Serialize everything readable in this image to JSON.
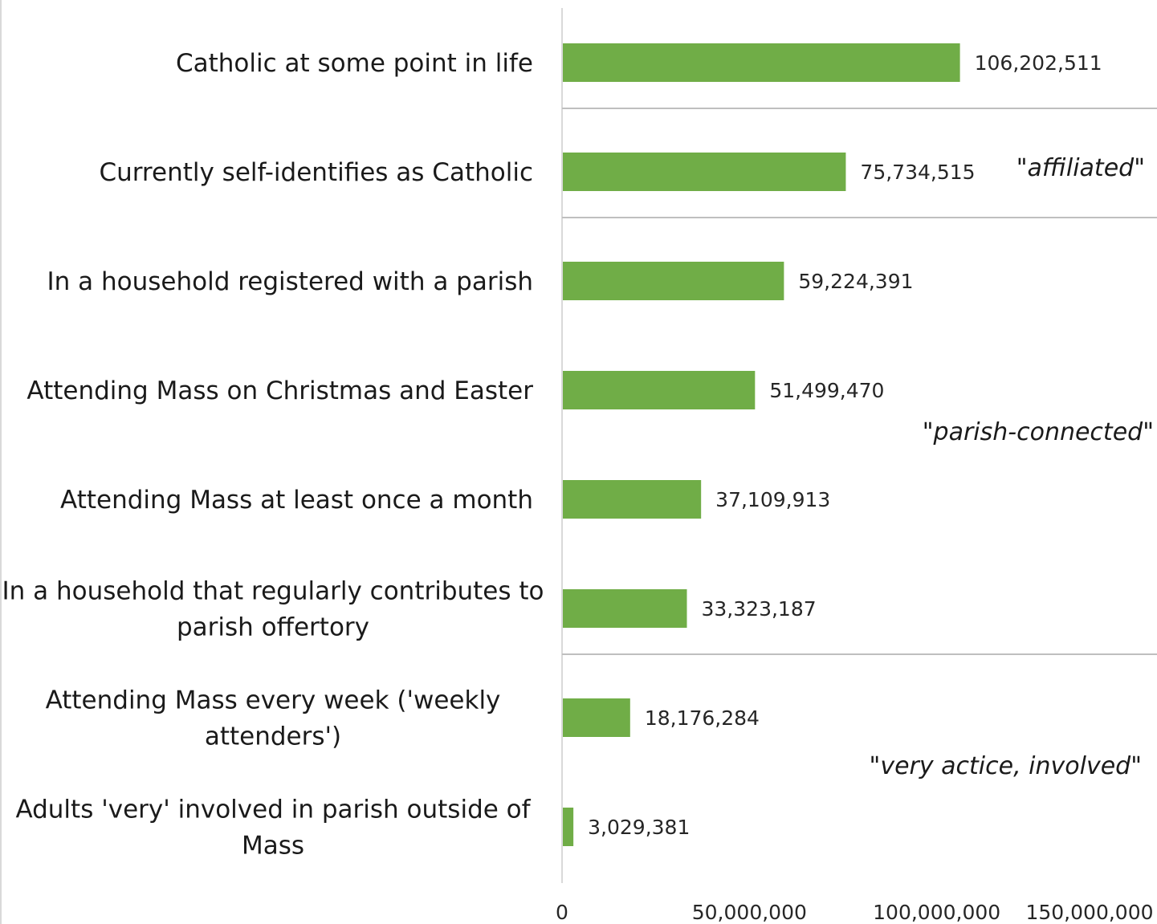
{
  "chart_data": {
    "type": "bar",
    "orientation": "horizontal",
    "categories": [
      "Catholic at some point in life",
      "Currently self-identifies as Catholic",
      "In a household registered with a parish",
      "Attending Mass on Christmas and Easter",
      "Attending Mass at least once a month",
      "In a household that regularly contributes to parish offertory",
      "Attending Mass every week ('weekly attenders')",
      "Adults 'very' involved in parish outside of Mass"
    ],
    "category_lines": [
      [
        "Catholic at some point in life"
      ],
      [
        "Currently self-identifies as Catholic"
      ],
      [
        "In a household registered with a parish"
      ],
      [
        "Attending Mass on Christmas and Easter"
      ],
      [
        "Attending Mass at least once a month"
      ],
      [
        "In a household that regularly contributes to",
        "parish offertory"
      ],
      [
        "Attending Mass every week ('weekly",
        "attenders')"
      ],
      [
        "Adults 'very' involved in parish outside of",
        "Mass"
      ]
    ],
    "values": [
      106202511,
      75734515,
      59224391,
      51499470,
      37109913,
      33323187,
      18176284,
      3029381
    ],
    "value_labels": [
      "106,202,511",
      "75,734,515",
      "59,224,391",
      "51,499,470",
      "37,109,913",
      "33,323,187",
      "18,176,284",
      "3,029,381"
    ],
    "xlim": [
      0,
      150000000
    ],
    "xticks": [
      0,
      50000000,
      100000000,
      150000000
    ],
    "xtick_labels": [
      "0",
      "50,000,000",
      "100,000,000",
      "150,000,000"
    ],
    "group_labels": [
      "\"affiliated\"",
      "\"parish-connected\"",
      "\"very actice, involved\""
    ],
    "bar_color": "#70ad47",
    "separator_color": "#bfbfbf",
    "grid": false,
    "legend": "none"
  }
}
